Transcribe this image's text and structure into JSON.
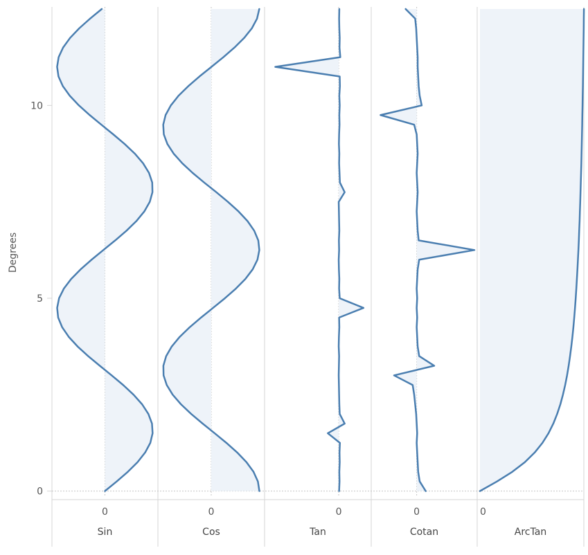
{
  "chart_data": {
    "type": "area",
    "orientation": "vertical",
    "ylabel": "Degrees",
    "y_ticks": [
      "0",
      "5",
      "10"
    ],
    "ylim": [
      -0.15,
      12.5
    ],
    "grid": false,
    "y": [
      0,
      0.25,
      0.5,
      0.75,
      1,
      1.25,
      1.5,
      1.75,
      2,
      2.25,
      2.5,
      2.75,
      3,
      3.25,
      3.5,
      3.75,
      4,
      4.25,
      4.5,
      4.75,
      5,
      5.25,
      5.5,
      5.75,
      6,
      6.25,
      6.5,
      6.75,
      7,
      7.25,
      7.5,
      7.75,
      8,
      8.25,
      8.5,
      8.75,
      9,
      9.25,
      9.5,
      9.75,
      10,
      10.25,
      10.5,
      10.75,
      11,
      11.25,
      11.5,
      11.75,
      12,
      12.25,
      12.5
    ],
    "series": [
      {
        "name": "Sin",
        "zero_label": "0",
        "xlim": [
          -1.05,
          1.05
        ],
        "x": [
          0,
          0.247,
          0.479,
          0.682,
          0.841,
          0.949,
          0.997,
          0.984,
          0.909,
          0.778,
          0.598,
          0.382,
          0.141,
          -0.108,
          -0.351,
          -0.572,
          -0.757,
          -0.895,
          -0.978,
          -0.999,
          -0.959,
          -0.859,
          -0.706,
          -0.508,
          -0.279,
          -0.033,
          0.215,
          0.45,
          0.657,
          0.823,
          0.938,
          0.994,
          0.989,
          0.922,
          0.798,
          0.625,
          0.412,
          0.174,
          -0.075,
          -0.319,
          -0.544,
          -0.735,
          -0.88,
          -0.971,
          -1.0,
          -0.968,
          -0.875,
          -0.729,
          -0.537,
          -0.311,
          -0.066
        ]
      },
      {
        "name": "Cos",
        "zero_label": "0",
        "xlim": [
          -1.05,
          1.05
        ],
        "x": [
          1,
          0.969,
          0.878,
          0.732,
          0.54,
          0.315,
          0.071,
          -0.178,
          -0.416,
          -0.628,
          -0.801,
          -0.924,
          -0.99,
          -0.994,
          -0.936,
          -0.82,
          -0.654,
          -0.446,
          -0.211,
          0.037,
          0.284,
          0.512,
          0.709,
          0.861,
          0.96,
          0.999,
          0.977,
          0.893,
          0.754,
          0.568,
          0.347,
          0.105,
          -0.146,
          -0.386,
          -0.602,
          -0.781,
          -0.911,
          -0.985,
          -0.997,
          -0.948,
          -0.839,
          -0.68,
          -0.476,
          -0.245,
          0.004,
          0.251,
          0.482,
          0.684,
          0.844,
          0.951,
          0.998
        ]
      },
      {
        "name": "Tan",
        "zero_label": "0",
        "xlim": [
          -3.6,
          1.5
        ],
        "x": [
          0.02,
          0.04,
          0.03,
          0.05,
          0.04,
          0.06,
          -0.55,
          0.3,
          0.05,
          0.03,
          0.02,
          0.01,
          0.0,
          0.01,
          0.02,
          0.0,
          0.01,
          0.03,
          0.02,
          1.25,
          0.05,
          0.02,
          0.03,
          0.01,
          0.0,
          0.02,
          0.01,
          0.03,
          0.02,
          0.01,
          0.0,
          0.3,
          0.06,
          0.04,
          0.02,
          0.03,
          0.01,
          0.02,
          0.04,
          0.03,
          0.05,
          0.03,
          0.06,
          0.05,
          -3.2,
          0.08,
          0.04,
          0.05,
          0.03,
          0.02,
          0.03
        ]
      },
      {
        "name": "Cotan",
        "zero_label": "0",
        "xlim": [
          -0.85,
          1.15
        ],
        "x": [
          0.18,
          0.06,
          0.03,
          0.02,
          0.01,
          0.0,
          0.01,
          0.0,
          -0.01,
          -0.03,
          -0.05,
          -0.08,
          -0.45,
          0.35,
          0.05,
          0.02,
          0.01,
          0.0,
          0.01,
          0.0,
          0.01,
          0.0,
          0.01,
          0.02,
          0.05,
          1.15,
          0.04,
          0.02,
          0.01,
          0.0,
          0.01,
          0.02,
          0.01,
          0.0,
          0.01,
          0.02,
          0.01,
          0.0,
          -0.05,
          -0.72,
          0.1,
          0.06,
          0.04,
          0.03,
          0.02,
          0.02,
          0.01,
          0.0,
          -0.01,
          -0.03,
          -0.22
        ]
      },
      {
        "name": "ArcTan",
        "zero_label": "0",
        "xlim": [
          0,
          1.45
        ],
        "x": [
          0,
          0.245,
          0.464,
          0.644,
          0.785,
          0.896,
          0.983,
          1.052,
          1.107,
          1.153,
          1.19,
          1.222,
          1.249,
          1.272,
          1.292,
          1.31,
          1.326,
          1.34,
          1.352,
          1.363,
          1.373,
          1.382,
          1.39,
          1.398,
          1.405,
          1.412,
          1.418,
          1.423,
          1.429,
          1.433,
          1.438,
          1.442,
          1.446,
          1.45,
          1.454,
          1.457,
          1.46,
          1.463,
          1.466,
          1.468,
          1.471,
          1.473,
          1.476,
          1.478,
          1.48,
          1.482,
          1.484,
          1.486,
          1.488,
          1.489,
          1.491
        ]
      }
    ],
    "colors": {
      "line": "#4a7eb0",
      "fill": "#eef3f9",
      "divider": "#d4d4d4",
      "zero_line": "#c4c4c4",
      "text": "#555555"
    }
  }
}
